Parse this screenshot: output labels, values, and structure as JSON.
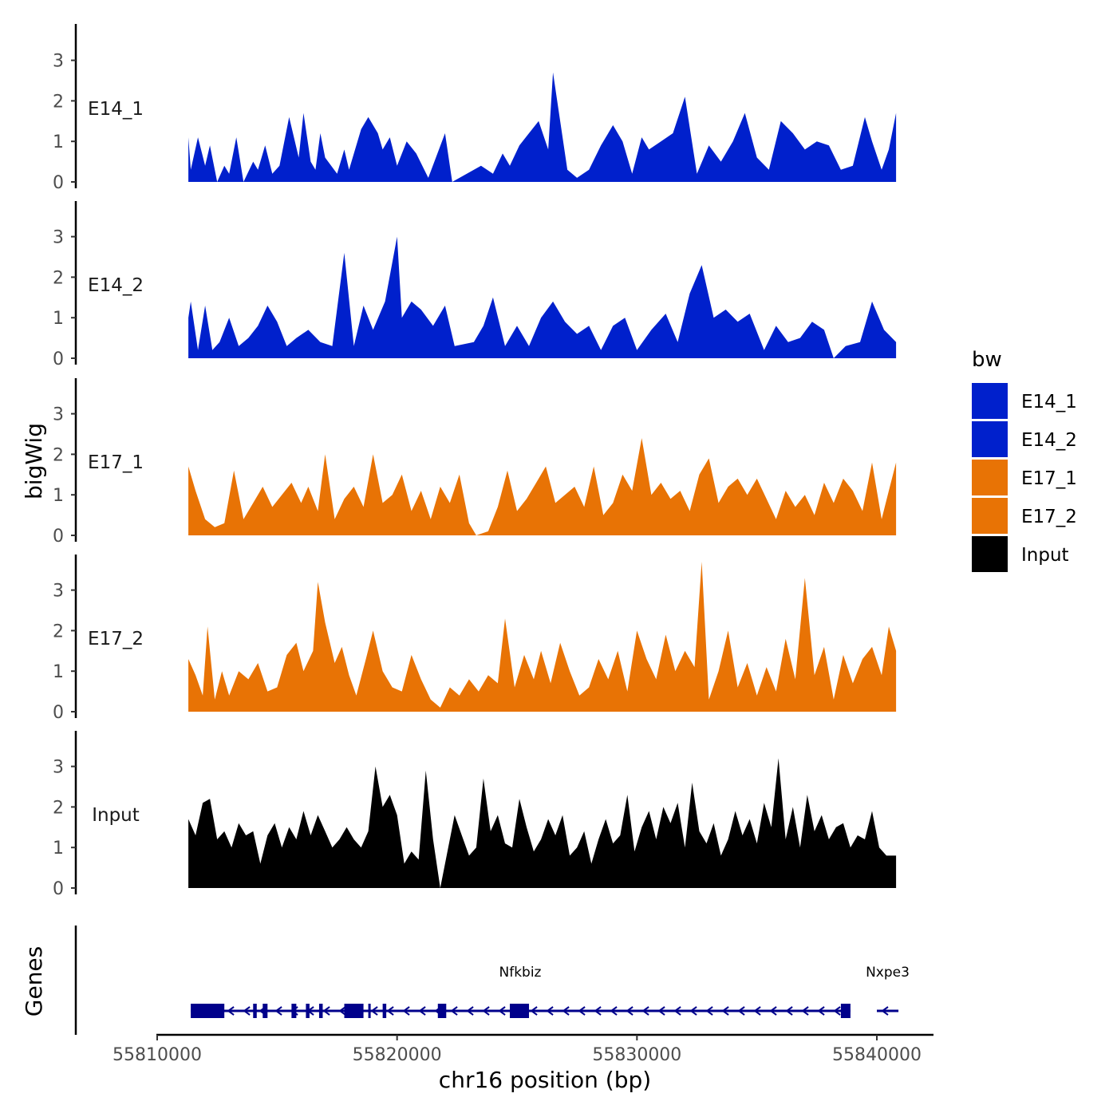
{
  "chart_data": {
    "type": "area",
    "title": "",
    "xlabel": "chr16 position (bp)",
    "ylabel": "bigWig",
    "genes_panel_label": "Genes",
    "xlim": [
      55808500,
      55842400
    ],
    "x_ticks": [
      55810000,
      55820000,
      55830000,
      55840000
    ],
    "x_tick_labels": [
      "55810000",
      "55820000",
      "55830000",
      "55840000"
    ],
    "ylim": [
      0,
      3.8
    ],
    "y_ticks": [
      0,
      1,
      2,
      3
    ],
    "y_tick_labels": [
      "0",
      "1",
      "2",
      "3"
    ],
    "legend": {
      "title": "bw",
      "position": "right",
      "entries": [
        {
          "label": "E14_1",
          "color": "#0020CC"
        },
        {
          "label": "E14_2",
          "color": "#0020CC"
        },
        {
          "label": "E17_1",
          "color": "#E87305"
        },
        {
          "label": "E17_2",
          "color": "#E87305"
        },
        {
          "label": "Input",
          "color": "#000000"
        }
      ]
    },
    "series": [
      {
        "name": "E14_1",
        "color": "#0020CC",
        "x": [
          55811300,
          55811400,
          55811700,
          55812000,
          55812200,
          55812500,
          55812800,
          55813000,
          55813300,
          55813600,
          55814000,
          55814200,
          55814500,
          55814800,
          55815100,
          55815500,
          55815900,
          55816100,
          55816400,
          55816600,
          55816800,
          55817000,
          55817500,
          55817800,
          55818000,
          55818500,
          55818800,
          55819200,
          55819400,
          55819700,
          55820000,
          55820400,
          55820800,
          55821300,
          55822000,
          55822300,
          55823500,
          55824000,
          55824400,
          55824700,
          55825100,
          55825500,
          55825900,
          55826300,
          55826500,
          55826800,
          55827100,
          55827500,
          55828000,
          55828500,
          55829000,
          55829400,
          55829800,
          55830200,
          55830500,
          55831000,
          55831500,
          55832000,
          55832500,
          55833000,
          55833500,
          55834000,
          55834500,
          55835000,
          55835500,
          55836000,
          55836500,
          55837000,
          55837500,
          55838000,
          55838500,
          55839000,
          55839500,
          55839800,
          55840200,
          55840500,
          55840800
        ],
        "values": [
          1.1,
          0.3,
          1.1,
          0.4,
          0.9,
          0,
          0.4,
          0.2,
          1.1,
          0,
          0.5,
          0.3,
          0.9,
          0.2,
          0.4,
          1.6,
          0.6,
          1.7,
          0.5,
          0.3,
          1.2,
          0.6,
          0.2,
          0.8,
          0.3,
          1.3,
          1.6,
          1.2,
          0.8,
          1.1,
          0.4,
          1.0,
          0.7,
          0.1,
          1.2,
          0,
          0.4,
          0.2,
          0.7,
          0.4,
          0.9,
          1.2,
          1.5,
          0.8,
          2.7,
          1.5,
          0.3,
          0.1,
          0.3,
          0.9,
          1.4,
          1.0,
          0.2,
          1.1,
          0.8,
          1.0,
          1.2,
          2.1,
          0.2,
          0.9,
          0.5,
          1.0,
          1.7,
          0.6,
          0.3,
          1.5,
          1.2,
          0.8,
          1.0,
          0.9,
          0.3,
          0.4,
          1.6,
          1.0,
          0.3,
          0.8,
          1.7
        ]
      },
      {
        "name": "E14_2",
        "color": "#0020CC",
        "x": [
          55811300,
          55811400,
          55811700,
          55812000,
          55812300,
          55812600,
          55813000,
          55813400,
          55813800,
          55814200,
          55814600,
          55815000,
          55815400,
          55815800,
          55816300,
          55816800,
          55817300,
          55817800,
          55818200,
          55818600,
          55819000,
          55819500,
          55820000,
          55820200,
          55820600,
          55821000,
          55821500,
          55822000,
          55822400,
          55823200,
          55823600,
          55824000,
          55824500,
          55825000,
          55825500,
          55826000,
          55826500,
          55827000,
          55827500,
          55828000,
          55828500,
          55829000,
          55829500,
          55830000,
          55830600,
          55831200,
          55831700,
          55832200,
          55832700,
          55833200,
          55833700,
          55834200,
          55834700,
          55835300,
          55835800,
          55836300,
          55836800,
          55837300,
          55837800,
          55838200,
          55838700,
          55839300,
          55839800,
          55840300,
          55840800
        ],
        "values": [
          1.0,
          1.4,
          0.2,
          1.3,
          0.2,
          0.4,
          1.0,
          0.3,
          0.5,
          0.8,
          1.3,
          0.9,
          0.3,
          0.5,
          0.7,
          0.4,
          0.3,
          2.6,
          0.3,
          1.3,
          0.7,
          1.4,
          3.0,
          1.0,
          1.4,
          1.2,
          0.8,
          1.3,
          0.3,
          0.4,
          0.8,
          1.5,
          0.3,
          0.8,
          0.3,
          1.0,
          1.4,
          0.9,
          0.6,
          0.8,
          0.2,
          0.8,
          1.0,
          0.2,
          0.7,
          1.1,
          0.4,
          1.6,
          2.3,
          1.0,
          1.2,
          0.9,
          1.1,
          0.2,
          0.8,
          0.4,
          0.5,
          0.9,
          0.7,
          0,
          0.3,
          0.4,
          1.4,
          0.7,
          0.4
        ]
      },
      {
        "name": "E17_1",
        "color": "#E87305",
        "x": [
          55811300,
          55811600,
          55812000,
          55812400,
          55812800,
          55813200,
          55813600,
          55814000,
          55814400,
          55814800,
          55815200,
          55815600,
          55816000,
          55816300,
          55816700,
          55817000,
          55817400,
          55817800,
          55818200,
          55818600,
          55819000,
          55819400,
          55819800,
          55820200,
          55820600,
          55821000,
          55821400,
          55821800,
          55822200,
          55822600,
          55823000,
          55823300,
          55823800,
          55824200,
          55824600,
          55825000,
          55825400,
          55825800,
          55826200,
          55826600,
          55827000,
          55827400,
          55827800,
          55828200,
          55828600,
          55829000,
          55829400,
          55829800,
          55830200,
          55830600,
          55831000,
          55831400,
          55831800,
          55832200,
          55832600,
          55833000,
          55833400,
          55833800,
          55834200,
          55834600,
          55835000,
          55835400,
          55835800,
          55836200,
          55836600,
          55837000,
          55837400,
          55837800,
          55838200,
          55838600,
          55839000,
          55839400,
          55839800,
          55840200,
          55840500,
          55840800
        ],
        "values": [
          1.7,
          1.1,
          0.4,
          0.2,
          0.3,
          1.6,
          0.4,
          0.8,
          1.2,
          0.7,
          1.0,
          1.3,
          0.8,
          1.2,
          0.6,
          2.0,
          0.4,
          0.9,
          1.2,
          0.7,
          2.0,
          0.8,
          1.0,
          1.5,
          0.6,
          1.1,
          0.4,
          1.2,
          0.8,
          1.5,
          0.3,
          0,
          0.1,
          0.7,
          1.6,
          0.6,
          0.9,
          1.3,
          1.7,
          0.8,
          1.0,
          1.2,
          0.7,
          1.7,
          0.5,
          0.8,
          1.5,
          1.1,
          2.4,
          1.0,
          1.3,
          0.9,
          1.1,
          0.6,
          1.5,
          1.9,
          0.8,
          1.2,
          1.4,
          1.0,
          1.4,
          0.9,
          0.4,
          1.1,
          0.7,
          1.0,
          0.5,
          1.3,
          0.8,
          1.4,
          1.1,
          0.6,
          1.8,
          0.4,
          1.1,
          1.8
        ]
      },
      {
        "name": "E17_2",
        "color": "#E87305",
        "x": [
          55811300,
          55811600,
          55811900,
          55812100,
          55812400,
          55812700,
          55813000,
          55813400,
          55813800,
          55814200,
          55814600,
          55815000,
          55815400,
          55815800,
          55816100,
          55816500,
          55816700,
          55817000,
          55817400,
          55817700,
          55818000,
          55818300,
          55818700,
          55819000,
          55819400,
          55819800,
          55820200,
          55820600,
          55821000,
          55821400,
          55821800,
          55822200,
          55822600,
          55823000,
          55823400,
          55823800,
          55824200,
          55824500,
          55824900,
          55825300,
          55825700,
          55826000,
          55826400,
          55826800,
          55827200,
          55827600,
          55828000,
          55828400,
          55828800,
          55829200,
          55829600,
          55830000,
          55830400,
          55830800,
          55831200,
          55831600,
          55832000,
          55832400,
          55832700,
          55833000,
          55833400,
          55833800,
          55834200,
          55834600,
          55835000,
          55835400,
          55835800,
          55836200,
          55836600,
          55837000,
          55837400,
          55837800,
          55838200,
          55838600,
          55839000,
          55839400,
          55839800,
          55840200,
          55840500,
          55840800
        ],
        "values": [
          1.3,
          0.9,
          0.4,
          2.1,
          0.3,
          1.0,
          0.4,
          1.0,
          0.8,
          1.2,
          0.5,
          0.6,
          1.4,
          1.7,
          1.0,
          1.5,
          3.2,
          2.2,
          1.2,
          1.6,
          0.9,
          0.4,
          1.3,
          2.0,
          1.0,
          0.6,
          0.5,
          1.4,
          0.8,
          0.3,
          0.1,
          0.6,
          0.4,
          0.8,
          0.5,
          0.9,
          0.7,
          2.3,
          0.6,
          1.4,
          0.8,
          1.5,
          0.7,
          1.7,
          1.0,
          0.4,
          0.6,
          1.3,
          0.8,
          1.5,
          0.5,
          2.0,
          1.3,
          0.8,
          1.9,
          1.0,
          1.5,
          1.1,
          3.7,
          0.3,
          1.0,
          2.0,
          0.6,
          1.2,
          0.4,
          1.1,
          0.5,
          1.8,
          0.8,
          3.3,
          0.9,
          1.6,
          0.3,
          1.4,
          0.7,
          1.3,
          1.6,
          0.9,
          2.1,
          1.5
        ]
      },
      {
        "name": "Input",
        "color": "#000000",
        "x": [
          55811300,
          55811600,
          55811900,
          55812200,
          55812500,
          55812800,
          55813100,
          55813400,
          55813700,
          55814000,
          55814300,
          55814600,
          55814900,
          55815200,
          55815500,
          55815800,
          55816100,
          55816400,
          55816700,
          55817000,
          55817300,
          55817600,
          55817900,
          55818200,
          55818500,
          55818800,
          55819100,
          55819400,
          55819700,
          55820000,
          55820300,
          55820600,
          55820900,
          55821200,
          55821500,
          55821800,
          55822100,
          55822400,
          55822700,
          55823000,
          55823300,
          55823600,
          55823900,
          55824200,
          55824500,
          55824800,
          55825100,
          55825400,
          55825700,
          55826000,
          55826300,
          55826600,
          55826900,
          55827200,
          55827500,
          55827800,
          55828100,
          55828400,
          55828700,
          55829000,
          55829300,
          55829600,
          55829900,
          55830200,
          55830500,
          55830800,
          55831100,
          55831400,
          55831700,
          55832000,
          55832300,
          55832600,
          55832900,
          55833200,
          55833500,
          55833800,
          55834100,
          55834400,
          55834700,
          55835000,
          55835300,
          55835600,
          55835900,
          55836200,
          55836500,
          55836800,
          55837100,
          55837400,
          55837700,
          55838000,
          55838300,
          55838600,
          55838900,
          55839200,
          55839500,
          55839800,
          55840100,
          55840400,
          55840800
        ],
        "values": [
          1.7,
          1.3,
          2.1,
          2.2,
          1.2,
          1.4,
          1.0,
          1.6,
          1.3,
          1.4,
          0.6,
          1.3,
          1.6,
          1.0,
          1.5,
          1.2,
          1.9,
          1.3,
          1.8,
          1.4,
          1.0,
          1.2,
          1.5,
          1.2,
          1.0,
          1.4,
          3.0,
          2.0,
          2.3,
          1.8,
          0.6,
          0.9,
          0.7,
          2.9,
          1.2,
          0,
          0.9,
          1.8,
          1.3,
          0.8,
          1.0,
          2.7,
          1.4,
          1.8,
          1.1,
          1.0,
          2.2,
          1.5,
          0.9,
          1.2,
          1.7,
          1.3,
          1.8,
          0.8,
          1.0,
          1.4,
          0.6,
          1.2,
          1.7,
          1.1,
          1.3,
          2.3,
          0.9,
          1.5,
          1.9,
          1.2,
          2.0,
          1.6,
          2.1,
          1.0,
          2.6,
          1.4,
          1.1,
          1.6,
          0.8,
          1.2,
          1.9,
          1.3,
          1.7,
          1.1,
          2.1,
          1.5,
          3.2,
          1.2,
          2.0,
          1.0,
          2.3,
          1.4,
          1.8,
          1.2,
          1.5,
          1.6,
          1.0,
          1.3,
          1.2,
          1.9,
          1.0,
          0.8,
          0.8
        ]
      }
    ],
    "genes": [
      {
        "name": "Nfkbiz",
        "start": 55811400,
        "end": 55838900,
        "strand": "-",
        "exons": [
          [
            55811400,
            55812800
          ],
          [
            55814000,
            55814150
          ],
          [
            55814400,
            55814600
          ],
          [
            55815600,
            55815800
          ],
          [
            55816200,
            55816350
          ],
          [
            55816750,
            55816900
          ],
          [
            55817800,
            55818600
          ],
          [
            55818800,
            55818900
          ],
          [
            55819400,
            55819550
          ],
          [
            55821700,
            55822050
          ],
          [
            55824700,
            55825500
          ],
          [
            55838500,
            55838900
          ]
        ]
      },
      {
        "name": "Nxpe3",
        "start": 55840000,
        "end": 55840900,
        "strand": "-",
        "exons": []
      }
    ]
  }
}
